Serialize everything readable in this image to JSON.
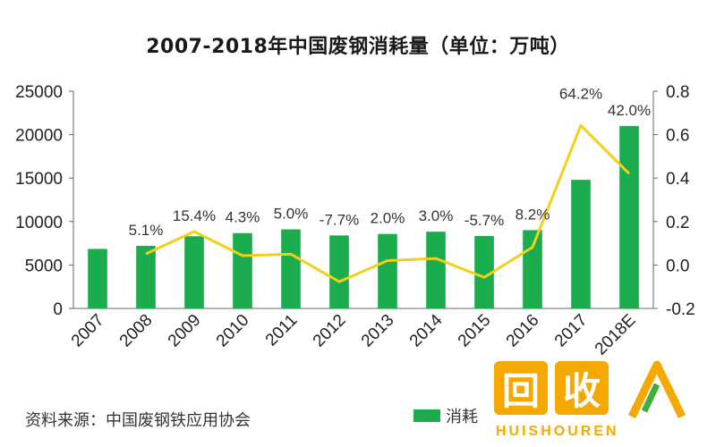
{
  "title": "2007-2018年中国废钢消耗量（单位：万吨）",
  "source": "资料来源：中国废钢铁应用协会",
  "legend": {
    "bar_label": "消耗",
    "bar_color": "#1aac4d",
    "line_color": "#f2cf1a"
  },
  "watermark": {
    "chars": [
      "回",
      "收"
    ],
    "text": "HUISHOUREN",
    "color": "#f5a800"
  },
  "chart_data": {
    "type": "bar",
    "categories": [
      "2007",
      "2008",
      "2009",
      "2010",
      "2011",
      "2012",
      "2013",
      "2014",
      "2015",
      "2016",
      "2017",
      "2018E"
    ],
    "series": [
      {
        "type": "bar",
        "axis": "left",
        "values": [
          6850,
          7200,
          8310,
          8670,
          9100,
          8400,
          8570,
          8830,
          8330,
          9010,
          14800,
          21000
        ]
      },
      {
        "type": "line",
        "axis": "right",
        "values": [
          null,
          0.051,
          0.154,
          0.043,
          0.05,
          -0.077,
          0.02,
          0.03,
          -0.057,
          0.082,
          0.642,
          0.42
        ],
        "labels": [
          "",
          "5.1%",
          "15.4%",
          "4.3%",
          "5.0%",
          "-7.7%",
          "2.0%",
          "3.0%",
          "-5.7%",
          "8.2%",
          "64.2%",
          "42.0%"
        ]
      }
    ],
    "y_left": {
      "min": 0,
      "max": 25000,
      "ticks": [
        0,
        5000,
        10000,
        15000,
        20000,
        25000
      ],
      "tick_labels": [
        "0",
        "5000",
        "10000",
        "15000",
        "20000",
        "25000"
      ]
    },
    "y_right": {
      "min": -0.2,
      "max": 0.8,
      "ticks": [
        -0.2,
        0,
        0.2,
        0.4,
        0.6,
        0.8
      ],
      "tick_labels": [
        "-0.2",
        "0.0",
        "0.2",
        "0.4",
        "0.6",
        "0.8"
      ]
    },
    "grid": false,
    "legend_position": "bottom-right"
  }
}
